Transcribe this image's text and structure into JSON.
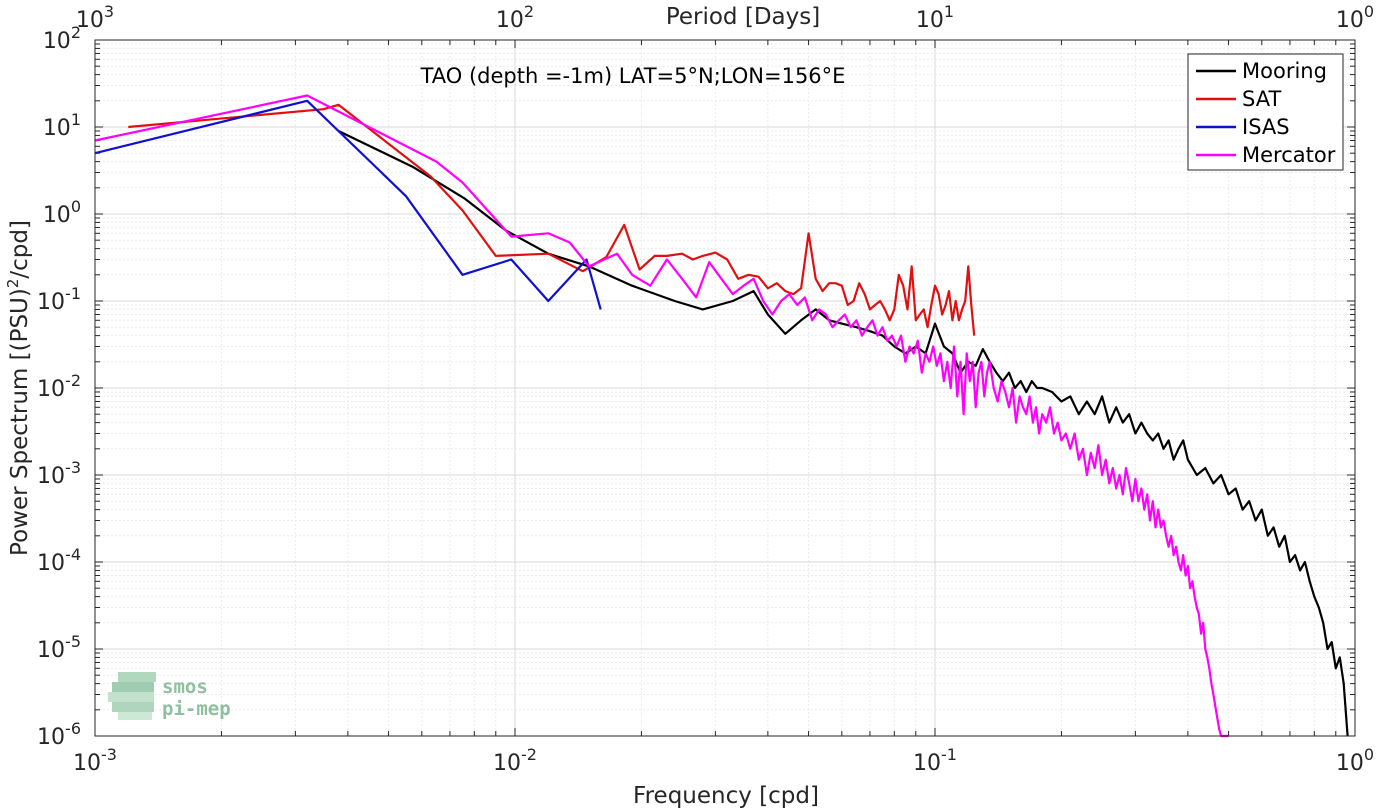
{
  "chart_data": {
    "type": "line",
    "title": "TAO (depth =-1m) LAT=5°N;LON=156°E",
    "xlabel": "Frequency [cpd]",
    "ylabel": "Power Spectrum [(PSU)",
    "ylabel_sup": "2",
    "ylabel_tail": "/cpd]",
    "top_xlabel": "Period [Days]",
    "x_scale": "log",
    "y_scale": "log",
    "xlim": [
      0.001,
      1
    ],
    "ylim": [
      1e-06,
      100
    ],
    "grid": true,
    "legend_position": "top-right",
    "x_ticks": [
      {
        "value": 0.001,
        "base": "10",
        "exp": "-3"
      },
      {
        "value": 0.01,
        "base": "10",
        "exp": "-2"
      },
      {
        "value": 0.1,
        "base": "10",
        "exp": "-1"
      },
      {
        "value": 1,
        "base": "10",
        "exp": "0"
      }
    ],
    "y_ticks": [
      {
        "value": 1e-06,
        "base": "10",
        "exp": "-6"
      },
      {
        "value": 1e-05,
        "base": "10",
        "exp": "-5"
      },
      {
        "value": 0.0001,
        "base": "10",
        "exp": "-4"
      },
      {
        "value": 0.001,
        "base": "10",
        "exp": "-3"
      },
      {
        "value": 0.01,
        "base": "10",
        "exp": "-2"
      },
      {
        "value": 0.1,
        "base": "10",
        "exp": "-1"
      },
      {
        "value": 1,
        "base": "10",
        "exp": "0"
      },
      {
        "value": 10,
        "base": "10",
        "exp": "1"
      },
      {
        "value": 100,
        "base": "10",
        "exp": "2"
      }
    ],
    "top_ticks": [
      {
        "value": 1000,
        "base": "10",
        "exp": "3"
      },
      {
        "value": 100,
        "base": "10",
        "exp": "2"
      },
      {
        "value": 10,
        "base": "10",
        "exp": "1"
      },
      {
        "value": 1,
        "base": "10",
        "exp": "0"
      }
    ],
    "series": [
      {
        "name": "Mooring",
        "color": "#000000",
        "x": [
          0.0038,
          0.0057,
          0.0076,
          0.0095,
          0.012,
          0.015,
          0.019,
          0.024,
          0.028,
          0.033,
          0.037,
          0.04,
          0.044,
          0.048,
          0.052,
          0.056,
          0.06,
          0.065,
          0.07,
          0.075,
          0.08,
          0.085,
          0.09,
          0.095,
          0.1,
          0.105,
          0.11,
          0.115,
          0.12,
          0.125,
          0.13,
          0.135,
          0.14,
          0.145,
          0.15,
          0.155,
          0.16,
          0.165,
          0.17,
          0.175,
          0.18,
          0.19,
          0.2,
          0.21,
          0.22,
          0.23,
          0.24,
          0.25,
          0.26,
          0.27,
          0.28,
          0.29,
          0.3,
          0.31,
          0.32,
          0.33,
          0.34,
          0.35,
          0.36,
          0.37,
          0.38,
          0.39,
          0.4,
          0.42,
          0.44,
          0.46,
          0.48,
          0.5,
          0.52,
          0.54,
          0.56,
          0.58,
          0.6,
          0.62,
          0.64,
          0.66,
          0.68,
          0.7,
          0.72,
          0.74,
          0.76,
          0.78,
          0.8,
          0.82,
          0.84,
          0.86,
          0.88,
          0.9,
          0.92,
          0.94,
          0.96
        ],
        "values": [
          9,
          3.5,
          1.5,
          0.65,
          0.35,
          0.25,
          0.15,
          0.1,
          0.08,
          0.1,
          0.13,
          0.07,
          0.042,
          0.06,
          0.08,
          0.06,
          0.055,
          0.05,
          0.045,
          0.04,
          0.03,
          0.025,
          0.03,
          0.025,
          0.055,
          0.03,
          0.025,
          0.015,
          0.02,
          0.018,
          0.028,
          0.02,
          0.015,
          0.012,
          0.015,
          0.01,
          0.012,
          0.009,
          0.012,
          0.01,
          0.01,
          0.009,
          0.007,
          0.008,
          0.005,
          0.007,
          0.005,
          0.008,
          0.004,
          0.006,
          0.004,
          0.005,
          0.003,
          0.004,
          0.003,
          0.0025,
          0.003,
          0.002,
          0.0025,
          0.0015,
          0.002,
          0.0025,
          0.0015,
          0.001,
          0.0012,
          0.0008,
          0.001,
          0.0006,
          0.0007,
          0.0004,
          0.0005,
          0.0003,
          0.0004,
          0.0002,
          0.00025,
          0.00015,
          0.0002,
          0.0001,
          0.00012,
          8e-05,
          0.0001,
          6e-05,
          4e-05,
          3e-05,
          2e-05,
          1e-05,
          1.2e-05,
          6e-06,
          8e-06,
          4e-06,
          1e-06
        ]
      },
      {
        "name": "SAT",
        "color": "#e01010",
        "x": [
          0.0012,
          0.0035,
          0.0038,
          0.0063,
          0.0075,
          0.009,
          0.012,
          0.0145,
          0.0165,
          0.0182,
          0.0198,
          0.0215,
          0.023,
          0.025,
          0.0265,
          0.028,
          0.03,
          0.032,
          0.034,
          0.036,
          0.038,
          0.04,
          0.042,
          0.044,
          0.046,
          0.048,
          0.05,
          0.052,
          0.054,
          0.056,
          0.058,
          0.06,
          0.062,
          0.064,
          0.066,
          0.068,
          0.07,
          0.072,
          0.074,
          0.076,
          0.078,
          0.08,
          0.082,
          0.084,
          0.086,
          0.088,
          0.09,
          0.092,
          0.094,
          0.096,
          0.098,
          0.1,
          0.102,
          0.104,
          0.106,
          0.108,
          0.11,
          0.112,
          0.114,
          0.116,
          0.118,
          0.12,
          0.122,
          0.124
        ],
        "values": [
          10,
          16,
          18,
          2.7,
          1.1,
          0.33,
          0.35,
          0.22,
          0.32,
          0.75,
          0.23,
          0.33,
          0.33,
          0.35,
          0.3,
          0.33,
          0.36,
          0.3,
          0.18,
          0.2,
          0.19,
          0.14,
          0.16,
          0.13,
          0.12,
          0.14,
          0.6,
          0.18,
          0.13,
          0.16,
          0.16,
          0.15,
          0.09,
          0.1,
          0.16,
          0.12,
          0.08,
          0.09,
          0.1,
          0.08,
          0.06,
          0.08,
          0.2,
          0.15,
          0.08,
          0.25,
          0.06,
          0.07,
          0.08,
          0.05,
          0.09,
          0.15,
          0.12,
          0.07,
          0.09,
          0.13,
          0.06,
          0.1,
          0.06,
          0.08,
          0.1,
          0.25,
          0.09,
          0.04
        ]
      },
      {
        "name": "ISAS",
        "color": "#1010d0",
        "x": [
          0.001,
          0.0032,
          0.0055,
          0.0075,
          0.0098,
          0.012,
          0.0148,
          0.016
        ],
        "values": [
          5,
          20,
          1.6,
          0.2,
          0.3,
          0.1,
          0.3,
          0.08
        ]
      },
      {
        "name": "Mercator",
        "color": "#ff00ff",
        "x": [
          0.001,
          0.0032,
          0.0065,
          0.0075,
          0.0098,
          0.012,
          0.0135,
          0.015,
          0.0175,
          0.019,
          0.021,
          0.023,
          0.025,
          0.027,
          0.029,
          0.031,
          0.033,
          0.035,
          0.037,
          0.039,
          0.041,
          0.043,
          0.045,
          0.047,
          0.049,
          0.051,
          0.053,
          0.055,
          0.057,
          0.059,
          0.061,
          0.063,
          0.065,
          0.067,
          0.069,
          0.071,
          0.073,
          0.075,
          0.077,
          0.079,
          0.081,
          0.083,
          0.085,
          0.087,
          0.089,
          0.091,
          0.093,
          0.095,
          0.097,
          0.099,
          0.101,
          0.103,
          0.105,
          0.107,
          0.109,
          0.111,
          0.113,
          0.115,
          0.117,
          0.119,
          0.121,
          0.123,
          0.125,
          0.127,
          0.129,
          0.131,
          0.133,
          0.135,
          0.138,
          0.141,
          0.144,
          0.147,
          0.15,
          0.153,
          0.156,
          0.159,
          0.162,
          0.165,
          0.168,
          0.171,
          0.174,
          0.177,
          0.18,
          0.184,
          0.188,
          0.192,
          0.196,
          0.2,
          0.205,
          0.21,
          0.215,
          0.22,
          0.225,
          0.23,
          0.235,
          0.24,
          0.245,
          0.25,
          0.255,
          0.26,
          0.265,
          0.27,
          0.275,
          0.28,
          0.285,
          0.29,
          0.295,
          0.3,
          0.305,
          0.31,
          0.315,
          0.32,
          0.325,
          0.33,
          0.335,
          0.34,
          0.345,
          0.35,
          0.355,
          0.36,
          0.365,
          0.37,
          0.375,
          0.38,
          0.385,
          0.39,
          0.395,
          0.4,
          0.405,
          0.41,
          0.415,
          0.42,
          0.425,
          0.43,
          0.435,
          0.44,
          0.445,
          0.45,
          0.455,
          0.46,
          0.465,
          0.47,
          0.475,
          0.48,
          0.485,
          0.49,
          0.495,
          0.5
        ],
        "values": [
          7,
          23,
          4,
          2.3,
          0.55,
          0.6,
          0.47,
          0.25,
          0.35,
          0.2,
          0.15,
          0.3,
          0.18,
          0.11,
          0.28,
          0.18,
          0.12,
          0.15,
          0.18,
          0.1,
          0.07,
          0.1,
          0.12,
          0.09,
          0.11,
          0.06,
          0.08,
          0.07,
          0.05,
          0.06,
          0.07,
          0.05,
          0.06,
          0.04,
          0.05,
          0.06,
          0.04,
          0.05,
          0.035,
          0.04,
          0.03,
          0.04,
          0.02,
          0.03,
          0.025,
          0.035,
          0.015,
          0.025,
          0.02,
          0.03,
          0.018,
          0.025,
          0.012,
          0.02,
          0.01,
          0.03,
          0.008,
          0.02,
          0.005,
          0.025,
          0.012,
          0.02,
          0.006,
          0.015,
          0.02,
          0.008,
          0.015,
          0.02,
          0.01,
          0.007,
          0.012,
          0.009,
          0.006,
          0.01,
          0.004,
          0.008,
          0.006,
          0.005,
          0.008,
          0.004,
          0.006,
          0.003,
          0.005,
          0.004,
          0.006,
          0.003,
          0.004,
          0.0025,
          0.003,
          0.002,
          0.003,
          0.0015,
          0.002,
          0.001,
          0.0018,
          0.0012,
          0.0022,
          0.001,
          0.0015,
          0.0008,
          0.0012,
          0.0007,
          0.001,
          0.0006,
          0.0012,
          0.0008,
          0.0005,
          0.0009,
          0.0005,
          0.0007,
          0.0004,
          0.0006,
          0.0003,
          0.0005,
          0.00025,
          0.0004,
          0.00025,
          0.0003,
          0.0002,
          0.00015,
          0.0002,
          0.00012,
          0.00015,
          0.0001,
          8e-05,
          0.00012,
          7e-05,
          9e-05,
          5e-05,
          6e-05,
          4e-05,
          3e-05,
          2.5e-05,
          1.5e-05,
          2e-05,
          1e-05,
          8e-06,
          6e-06,
          4e-06,
          3e-06,
          2.2e-06,
          1.6e-06,
          1.2e-06,
          1e-06,
          1e-06,
          1e-06,
          1e-06,
          1e-06
        ]
      }
    ]
  },
  "logo": {
    "line1": "smos",
    "line2": "pi-mep",
    "color": "#8fbf9f"
  }
}
